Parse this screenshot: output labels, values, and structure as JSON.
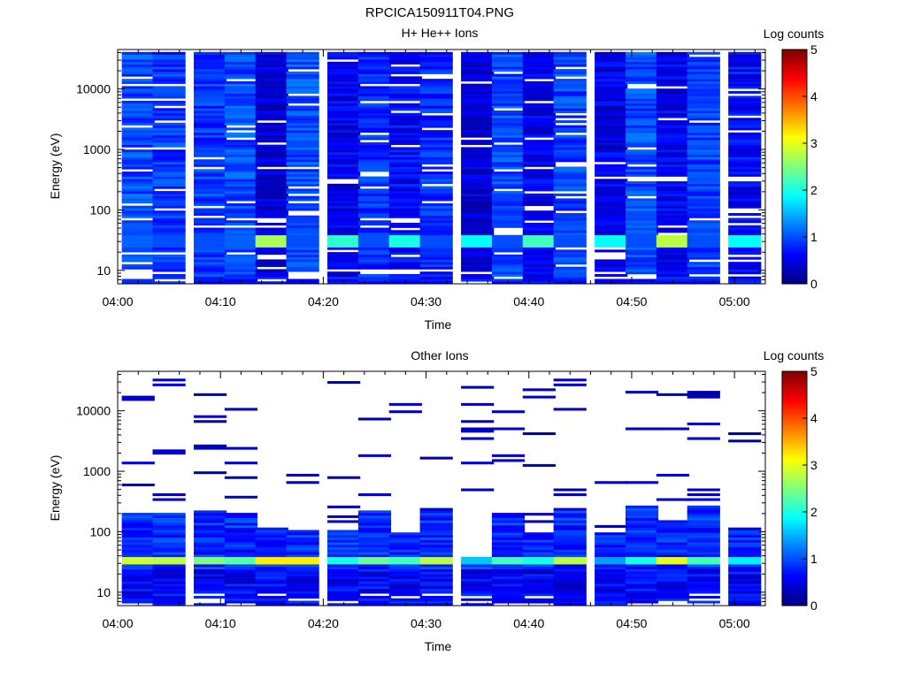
{
  "figure": {
    "title": "RPCICA150911T04.PNG"
  },
  "chart_data": [
    {
      "type": "heatmap",
      "title": "H+ He++ Ions",
      "xlabel": "Time",
      "ylabel": "Energy (eV)",
      "colorbar_label": "Log counts",
      "colorbar_ticks": [
        "0",
        "1",
        "2",
        "3",
        "4",
        "5"
      ],
      "colorbar_range": [
        0,
        5
      ],
      "colormap": [
        "#00007f",
        "#0000ff",
        "#007fff",
        "#00ffff",
        "#7fff7f",
        "#ffff00",
        "#ff7f00",
        "#ff0000",
        "#7f0000"
      ],
      "x_ticks": [
        "04:00",
        "04:10",
        "04:20",
        "04:30",
        "04:40",
        "04:50",
        "05:00"
      ],
      "xlim": [
        "04:00",
        "05:03"
      ],
      "y_scale": "log",
      "y_ticks": [
        "10",
        "100",
        "1000",
        "10000"
      ],
      "ylim": [
        6,
        45000
      ],
      "time_columns": [
        "04:02",
        "04:05",
        "04:09",
        "04:12",
        "04:15",
        "04:18",
        "04:22",
        "04:25",
        "04:28",
        "04:31",
        "04:35",
        "04:38",
        "04:41",
        "04:44",
        "04:48",
        "04:51",
        "04:54",
        "04:57",
        "05:01"
      ],
      "base_level": [
        0.95,
        0.85,
        0.85,
        0.95,
        0.4,
        0.95,
        0.5,
        0.8,
        0.6,
        0.8,
        0.4,
        0.95,
        0.5,
        0.9,
        0.5,
        0.95,
        0.5,
        0.9,
        0.6
      ],
      "peak": {
        "energy_ev": [
          25,
          40
        ],
        "level": [
          1.1,
          1.0,
          1.0,
          1.1,
          2.7,
          1.0,
          2.1,
          1.0,
          2.0,
          1.0,
          1.9,
          1.0,
          2.2,
          1.0,
          1.9,
          1.0,
          2.8,
          1.0,
          1.9
        ]
      }
    },
    {
      "type": "heatmap",
      "title": "Other Ions",
      "xlabel": "Time",
      "ylabel": "Energy (eV)",
      "colorbar_label": "Log counts",
      "colorbar_ticks": [
        "0",
        "1",
        "2",
        "3",
        "4",
        "5"
      ],
      "colorbar_range": [
        0,
        5
      ],
      "colormap": [
        "#00007f",
        "#0000ff",
        "#007fff",
        "#00ffff",
        "#7fff7f",
        "#ffff00",
        "#ff7f00",
        "#ff0000",
        "#7f0000"
      ],
      "x_ticks": [
        "04:00",
        "04:10",
        "04:20",
        "04:30",
        "04:40",
        "04:50",
        "05:00"
      ],
      "xlim": [
        "04:00",
        "05:03"
      ],
      "y_scale": "log",
      "y_ticks": [
        "10",
        "100",
        "1000",
        "10000"
      ],
      "ylim": [
        6,
        45000
      ],
      "time_columns": [
        "04:02",
        "04:05",
        "04:09",
        "04:12",
        "04:15",
        "04:18",
        "04:22",
        "04:25",
        "04:28",
        "04:31",
        "04:35",
        "04:38",
        "04:41",
        "04:44",
        "04:48",
        "04:51",
        "04:54",
        "04:57",
        "05:01"
      ],
      "low_energy_top_ev": [
        200,
        200,
        220,
        200,
        120,
        110,
        110,
        220,
        100,
        250,
        40,
        200,
        100,
        250,
        100,
        260,
        160,
        280,
        120
      ],
      "peak": {
        "energy_ev": [
          28,
          40
        ],
        "level": [
          2.9,
          2.8,
          2.5,
          2.3,
          3.2,
          3.2,
          2.0,
          2.4,
          2.2,
          2.8,
          1.6,
          2.2,
          2.0,
          2.8,
          1.4,
          2.0,
          3.0,
          2.2,
          1.8
        ]
      },
      "sparse_high_energy": "isolated dark-blue (low count) lines from 200 eV to 40000 eV"
    }
  ]
}
